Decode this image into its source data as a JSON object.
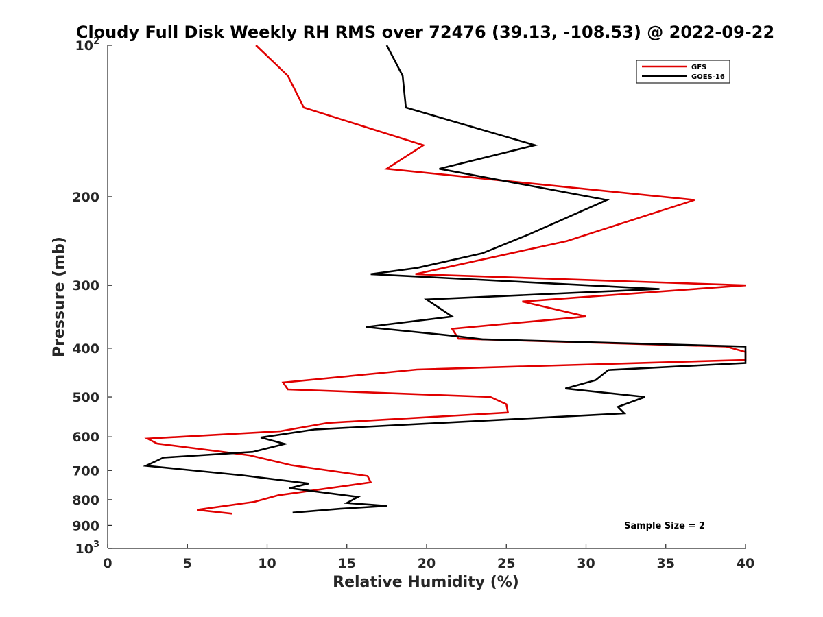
{
  "chart_data": {
    "type": "line",
    "title": "Cloudy Full Disk Weekly RH RMS over 72476 (39.13, -108.53) @ 2022-09-22",
    "xlabel": "Relative Humidity (%)",
    "ylabel": "Pressure (mb)",
    "xlim": [
      0,
      40
    ],
    "ylim": [
      100,
      1000
    ],
    "yscale": "log",
    "y_reversed": true,
    "x_ticks": [
      "0",
      "5",
      "10",
      "15",
      "20",
      "25",
      "30",
      "35",
      "40"
    ],
    "y_ticks": [
      {
        "value": 100,
        "label": "10",
        "sup": "2"
      },
      {
        "value": 200,
        "label": "200",
        "sup": ""
      },
      {
        "value": 300,
        "label": "300",
        "sup": ""
      },
      {
        "value": 400,
        "label": "400",
        "sup": ""
      },
      {
        "value": 500,
        "label": "500",
        "sup": ""
      },
      {
        "value": 600,
        "label": "600",
        "sup": ""
      },
      {
        "value": 700,
        "label": "700",
        "sup": ""
      },
      {
        "value": 800,
        "label": "800",
        "sup": ""
      },
      {
        "value": 900,
        "label": "900",
        "sup": ""
      },
      {
        "value": 1000,
        "label": "10",
        "sup": "3"
      }
    ],
    "legend_position": "top-right",
    "grid": false,
    "series": [
      {
        "name": "GFS",
        "color": "#e00000",
        "points": [
          [
            9.3,
            100
          ],
          [
            11.3,
            115
          ],
          [
            12.3,
            133
          ],
          [
            19.8,
            158
          ],
          [
            17.5,
            176
          ],
          [
            36.8,
            203
          ],
          [
            28.8,
            245
          ],
          [
            19.3,
            285
          ],
          [
            40.0,
            300
          ],
          [
            26.0,
            323
          ],
          [
            30.0,
            346
          ],
          [
            21.6,
            366
          ],
          [
            22.0,
            383
          ],
          [
            38.8,
            397
          ],
          [
            40.0,
            407
          ],
          [
            40.0,
            422
          ],
          [
            19.4,
            441
          ],
          [
            11.0,
            468
          ],
          [
            11.3,
            483
          ],
          [
            24.0,
            500
          ],
          [
            25.0,
            517
          ],
          [
            25.1,
            537
          ],
          [
            13.8,
            563
          ],
          [
            10.8,
            585
          ],
          [
            2.5,
            605
          ],
          [
            3.1,
            619
          ],
          [
            8.9,
            653
          ],
          [
            11.5,
            683
          ],
          [
            16.3,
            718
          ],
          [
            16.5,
            739
          ],
          [
            10.7,
            784
          ],
          [
            9.2,
            808
          ],
          [
            5.6,
            838
          ],
          [
            7.8,
            853
          ]
        ]
      },
      {
        "name": "GOES-16",
        "color": "#000000",
        "points": [
          [
            17.5,
            100
          ],
          [
            18.5,
            115
          ],
          [
            18.7,
            133
          ],
          [
            26.8,
            158
          ],
          [
            20.8,
            176
          ],
          [
            31.3,
            203
          ],
          [
            26.5,
            237
          ],
          [
            23.5,
            259
          ],
          [
            19.4,
            277
          ],
          [
            16.5,
            285
          ],
          [
            34.6,
            305
          ],
          [
            20.0,
            320
          ],
          [
            21.6,
            346
          ],
          [
            16.2,
            363
          ],
          [
            21.7,
            378
          ],
          [
            23.5,
            384
          ],
          [
            40.0,
            397
          ],
          [
            40.0,
            428
          ],
          [
            31.4,
            442
          ],
          [
            30.6,
            463
          ],
          [
            28.7,
            481
          ],
          [
            33.7,
            500
          ],
          [
            32.0,
            523
          ],
          [
            32.4,
            539
          ],
          [
            13.0,
            580
          ],
          [
            9.6,
            602
          ],
          [
            11.1,
            620
          ],
          [
            9.1,
            643
          ],
          [
            3.5,
            660
          ],
          [
            2.4,
            685
          ],
          [
            8.5,
            716
          ],
          [
            12.6,
            743
          ],
          [
            11.4,
            759
          ],
          [
            15.7,
            790
          ],
          [
            15.0,
            812
          ],
          [
            17.5,
            823
          ],
          [
            14.6,
            834
          ],
          [
            11.6,
            849
          ]
        ]
      }
    ],
    "annotation": "Sample Size = 2"
  }
}
